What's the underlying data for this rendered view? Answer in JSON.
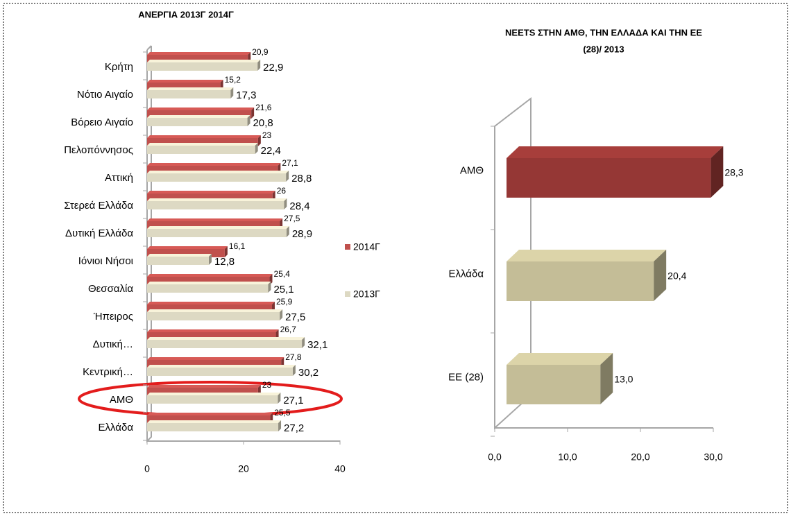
{
  "chart_data": [
    {
      "type": "bar",
      "orientation": "horizontal",
      "title": "ΑΝΕΡΓΙΑ 2013Γ 2014Γ",
      "categories": [
        "Κρήτη",
        "Νότιο Αιγαίο",
        "Βόρειο Αιγαίο",
        "Πελοπόννησος",
        "Αττική",
        "Στερεά Ελλάδα",
        "Δυτική Ελλάδα",
        "Ιόνιοι Νήσοι",
        "Θεσσαλία",
        "Ήπειρος",
        "Δυτική…",
        "Κεντρική…",
        "ΑΜΘ",
        "Ελλάδα"
      ],
      "series": [
        {
          "name": "2014Γ",
          "color": "#c0504d",
          "values": [
            20.9,
            15.2,
            21.6,
            23,
            27.1,
            26,
            27.5,
            16.1,
            25.4,
            25.9,
            26.7,
            27.8,
            23,
            25.5
          ],
          "value_labels": [
            "20,9",
            "15,2",
            "21,6",
            "23",
            "27,1",
            "26",
            "27,5",
            "16,1",
            "25,4",
            "25,9",
            "26,7",
            "27,8",
            "23",
            "25,5"
          ]
        },
        {
          "name": "2013Γ",
          "color": "#ddd9c3",
          "values": [
            22.9,
            17.3,
            20.8,
            22.4,
            28.8,
            28.4,
            28.9,
            12.8,
            25.1,
            27.5,
            32.1,
            30.2,
            27.1,
            27.2
          ],
          "value_labels": [
            "22,9",
            "17,3",
            "20,8",
            "22,4",
            "28,8",
            "28,4",
            "28,9",
            "12,8",
            "25,1",
            "27,5",
            "32,1",
            "30,2",
            "27,1",
            "27,2"
          ]
        }
      ],
      "xlim": [
        0,
        40
      ],
      "xticks": [
        0,
        20,
        40
      ],
      "legend": "right"
    },
    {
      "type": "bar",
      "orientation": "horizontal",
      "title": [
        "NEETS ΣΤΗΝ ΑΜΘ, ΤΗΝ ΕΛΛΑΔΑ ΚΑΙ ΤΗΝ ΕΕ",
        "(28)/ 2013"
      ],
      "categories": [
        "ΑΜΘ",
        "Ελλάδα",
        "ΕΕ (28)"
      ],
      "values": [
        28.3,
        20.4,
        13.0
      ],
      "value_labels": [
        "28,3",
        "20,4",
        "13,0"
      ],
      "colors": [
        "#953735",
        "#c4bd97",
        "#c4bd97"
      ],
      "xlim": [
        0,
        30
      ],
      "xticks": [
        {
          "value": 0,
          "label": "0,0"
        },
        {
          "value": 10,
          "label": "10,0"
        },
        {
          "value": 20,
          "label": "20,0"
        },
        {
          "value": 30,
          "label": "30,0"
        }
      ]
    }
  ]
}
